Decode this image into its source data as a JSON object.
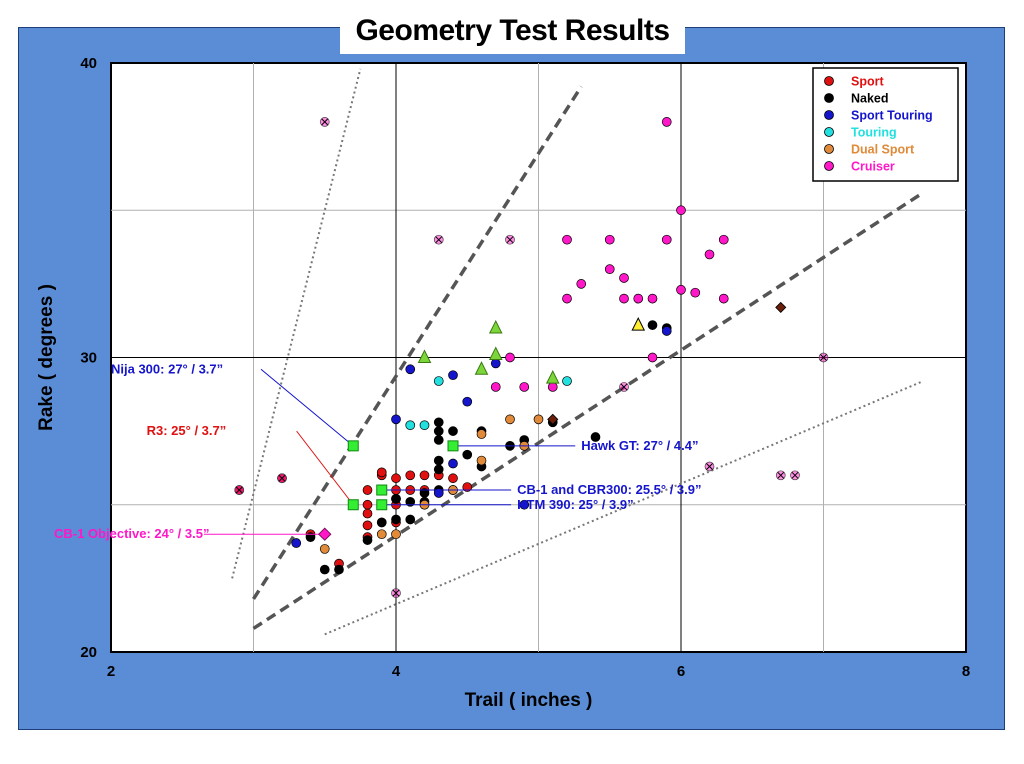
{
  "title": "Geometry Test Results",
  "chart_data": {
    "type": "scatter",
    "title": "Geometry Test Results",
    "xlabel": "Trail ( inches )",
    "ylabel": "Rake ( degrees )",
    "xlim": [
      2,
      8
    ],
    "ylim": [
      20,
      40
    ],
    "xticks": [
      2,
      4,
      6,
      8
    ],
    "yticks": [
      20,
      30,
      40
    ],
    "x_tick_labels": [
      "2",
      "4",
      "6",
      "8"
    ],
    "y_tick_labels": [
      "20",
      "30",
      "40"
    ],
    "grid": true,
    "legend_position": "top-right",
    "series": [
      {
        "name": "Sport",
        "color": "#e01010",
        "marker": "circle",
        "points": [
          [
            2.9,
            25.5
          ],
          [
            3.2,
            25.9
          ],
          [
            3.4,
            24
          ],
          [
            3.6,
            23
          ],
          [
            3.8,
            23.9
          ],
          [
            3.8,
            24.3
          ],
          [
            3.8,
            25
          ],
          [
            3.8,
            25.5
          ],
          [
            3.9,
            24.4
          ],
          [
            3.9,
            25
          ],
          [
            3.9,
            25.5
          ],
          [
            3.9,
            26
          ],
          [
            3.9,
            26.1
          ],
          [
            4.0,
            24.4
          ],
          [
            4.0,
            25
          ],
          [
            4.0,
            25.5
          ],
          [
            4.0,
            25.9
          ],
          [
            4.1,
            26
          ],
          [
            4.1,
            25.5
          ],
          [
            4.2,
            26
          ],
          [
            4.2,
            25.5
          ],
          [
            4.3,
            26
          ],
          [
            4.4,
            25.9
          ],
          [
            4.5,
            25.6
          ],
          [
            3.8,
            24.7
          ],
          [
            4.0,
            25.2
          ]
        ]
      },
      {
        "name": "Naked",
        "color": "#000000",
        "marker": "circle",
        "points": [
          [
            3.4,
            23.9
          ],
          [
            3.5,
            22.8
          ],
          [
            3.6,
            22.8
          ],
          [
            3.8,
            23.8
          ],
          [
            3.9,
            24.4
          ],
          [
            3.9,
            25
          ],
          [
            4.0,
            24.5
          ],
          [
            4.0,
            25.2
          ],
          [
            4.1,
            24.5
          ],
          [
            4.1,
            25.1
          ],
          [
            4.2,
            25.1
          ],
          [
            4.2,
            25.4
          ],
          [
            4.3,
            25.5
          ],
          [
            4.3,
            26.2
          ],
          [
            4.3,
            26.5
          ],
          [
            4.3,
            27.2
          ],
          [
            4.3,
            27.5
          ],
          [
            4.3,
            27.8
          ],
          [
            4.4,
            25.5
          ],
          [
            4.4,
            27
          ],
          [
            4.4,
            27.5
          ],
          [
            4.5,
            26.7
          ],
          [
            4.6,
            26.3
          ],
          [
            4.6,
            27.5
          ],
          [
            4.8,
            27
          ],
          [
            4.9,
            27.2
          ],
          [
            5.1,
            27.8
          ],
          [
            5.4,
            27.3
          ],
          [
            5.8,
            31.1
          ],
          [
            5.9,
            31
          ]
        ]
      },
      {
        "name": "Sport Touring",
        "color": "#1515cc",
        "marker": "circle",
        "points": [
          [
            3.3,
            23.7
          ],
          [
            4.0,
            27.9
          ],
          [
            4.1,
            29.6
          ],
          [
            4.2,
            25
          ],
          [
            4.3,
            25.4
          ],
          [
            4.4,
            26.4
          ],
          [
            4.4,
            29.4
          ],
          [
            4.5,
            28.5
          ],
          [
            4.7,
            29.8
          ],
          [
            4.9,
            25
          ],
          [
            5.9,
            30.9
          ]
        ]
      },
      {
        "name": "Touring",
        "color": "#22e0e0",
        "marker": "circle",
        "points": [
          [
            4.1,
            27.7
          ],
          [
            4.2,
            27.7
          ],
          [
            4.3,
            29.2
          ],
          [
            5.2,
            29.2
          ]
        ]
      },
      {
        "name": "Dual Sport",
        "color": "#e08a3a",
        "marker": "circle",
        "points": [
          [
            3.5,
            23.5
          ],
          [
            3.9,
            24
          ],
          [
            4.0,
            24
          ],
          [
            4.2,
            25
          ],
          [
            4.4,
            25.5
          ],
          [
            4.6,
            26.5
          ],
          [
            4.6,
            27.4
          ],
          [
            4.8,
            27.9
          ],
          [
            4.9,
            27
          ],
          [
            5.0,
            27.9
          ]
        ]
      },
      {
        "name": "Cruiser",
        "color": "#ff17c8",
        "marker": "circle",
        "points": [
          [
            4.7,
            29
          ],
          [
            4.8,
            30
          ],
          [
            4.9,
            29
          ],
          [
            5.1,
            29
          ],
          [
            5.2,
            32
          ],
          [
            5.2,
            34
          ],
          [
            5.3,
            32.5
          ],
          [
            5.5,
            34
          ],
          [
            5.5,
            33
          ],
          [
            5.6,
            32.7
          ],
          [
            5.6,
            32
          ],
          [
            5.7,
            32
          ],
          [
            5.8,
            30
          ],
          [
            5.8,
            32
          ],
          [
            5.9,
            34
          ],
          [
            5.9,
            38
          ],
          [
            6.0,
            32.3
          ],
          [
            6.0,
            35
          ],
          [
            6.1,
            32.2
          ],
          [
            6.2,
            33.5
          ],
          [
            6.3,
            32
          ],
          [
            6.3,
            34
          ]
        ]
      }
    ],
    "crossed_points": [
      [
        3.5,
        38
      ],
      [
        4.3,
        34
      ],
      [
        4.8,
        34
      ],
      [
        2.9,
        25.5
      ],
      [
        3.2,
        25.9
      ],
      [
        5.6,
        29
      ],
      [
        6.7,
        26
      ],
      [
        6.8,
        26
      ],
      [
        7.0,
        30
      ],
      [
        6.2,
        26.3
      ],
      [
        4.0,
        22
      ]
    ],
    "green_triangles": [
      [
        4.2,
        30
      ],
      [
        4.7,
        31
      ],
      [
        4.7,
        30.1
      ],
      [
        4.6,
        29.6
      ],
      [
        5.1,
        29.3
      ]
    ],
    "yellow_triangle": [
      5.7,
      31.1
    ],
    "brown_diamonds": [
      [
        6.7,
        31.7
      ],
      [
        5.1,
        27.9
      ]
    ],
    "trend_lines": [
      {
        "style": "dashed",
        "points": [
          [
            3.0,
            21.8
          ],
          [
            5.3,
            39.2
          ]
        ]
      },
      {
        "style": "dashed",
        "points": [
          [
            3.0,
            20.8
          ],
          [
            7.7,
            35.6
          ]
        ]
      },
      {
        "style": "dotted",
        "points": [
          [
            2.85,
            22.5
          ],
          [
            3.75,
            39.8
          ]
        ]
      },
      {
        "style": "dotted",
        "points": [
          [
            3.5,
            20.6
          ],
          [
            7.7,
            29.2
          ]
        ]
      }
    ],
    "highlighted_points": [
      {
        "label": "Nija 300:  27° / 3.7”",
        "color": "#1515cc",
        "x": 3.7,
        "y": 27,
        "marker": "square",
        "text_x": 2.0,
        "text_y": 29.6,
        "anchor": "start"
      },
      {
        "label": "R3:  25° / 3.7”",
        "color": "#e01010",
        "x": 3.7,
        "y": 25,
        "marker": "square",
        "text_x": 2.25,
        "text_y": 27.5,
        "anchor": "start"
      },
      {
        "label": "Hawk GT:  27° / 4.4”",
        "color": "#1515cc",
        "x": 4.4,
        "y": 27,
        "marker": "square",
        "text_x": 5.3,
        "text_y": 27,
        "anchor": "start"
      },
      {
        "label": "CB-1 and CBR300:  25.5° / 3.9”",
        "color": "#1515cc",
        "x": 3.9,
        "y": 25.5,
        "marker": "square",
        "text_x": 4.85,
        "text_y": 25.5,
        "anchor": "start"
      },
      {
        "label": "KTM 390:  25° / 3.9”",
        "color": "#1515cc",
        "x": 3.9,
        "y": 25,
        "marker": "square",
        "text_x": 4.85,
        "text_y": 25,
        "anchor": "start"
      },
      {
        "label": "CB-1 Objective:  24° / 3.5”",
        "color": "#ff17c8",
        "x": 3.5,
        "y": 24,
        "marker": "diamond",
        "text_x": 1.6,
        "text_y": 24,
        "anchor": "start"
      }
    ]
  }
}
